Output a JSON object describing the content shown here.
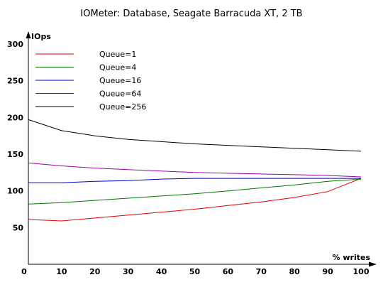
{
  "chart_data": {
    "type": "line",
    "title": "IOMeter: Database, Seagate Barracuda XT, 2 TB",
    "xlabel": "% writes",
    "ylabel": "IOps",
    "x": [
      0,
      10,
      20,
      30,
      40,
      50,
      60,
      70,
      80,
      90,
      100
    ],
    "xticks": [
      0,
      10,
      20,
      30,
      40,
      50,
      60,
      70,
      80,
      90,
      100
    ],
    "yticks": [
      50,
      100,
      150,
      200,
      250,
      300
    ],
    "xlim": [
      0,
      100
    ],
    "ylim": [
      0,
      300
    ],
    "grid": false,
    "legend_position": "top-left",
    "series": [
      {
        "name": "Queue=1",
        "color": "#e00000",
        "values": [
          61,
          59,
          63,
          67,
          71,
          75,
          80,
          85,
          91,
          99,
          117
        ]
      },
      {
        "name": "Queue=4",
        "color": "#007800",
        "values": [
          82,
          84,
          87,
          90,
          93,
          96,
          100,
          104,
          108,
          113,
          116
        ]
      },
      {
        "name": "Queue=16",
        "color": "#0000d0",
        "values": [
          111,
          111,
          113,
          114,
          116,
          117,
          117,
          117,
          117,
          117,
          117
        ]
      },
      {
        "name": "Queue=64",
        "color": "#a000a0",
        "values": [
          138,
          134,
          131,
          129,
          127,
          125,
          124,
          123,
          122,
          121,
          119
        ]
      },
      {
        "name": "Queue=256",
        "color": "#000000",
        "values": [
          197,
          182,
          175,
          170,
          167,
          164,
          162,
          160,
          158,
          156,
          154
        ]
      }
    ]
  }
}
